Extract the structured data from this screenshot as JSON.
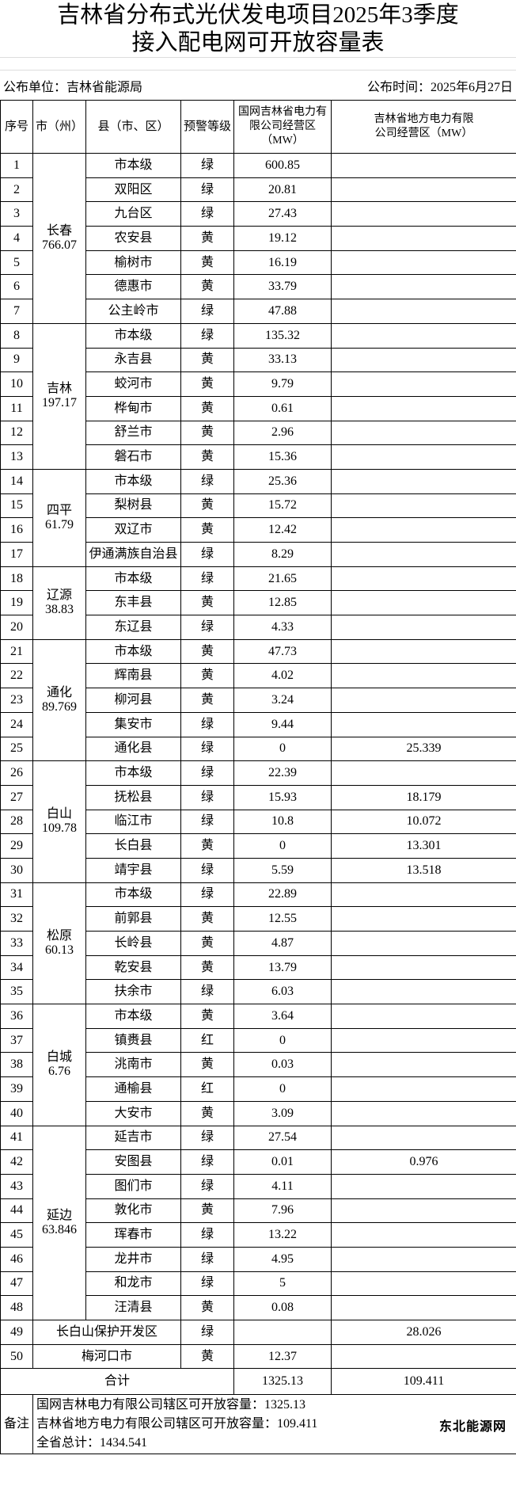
{
  "title_line1": "吉林省分布式光伏发电项目2025年3季度",
  "title_line2": "接入配电网可开放容量表",
  "publisher": "公布单位：吉林省能源局",
  "publish_date": "公布时间：2025年6月27日",
  "headers": [
    "序号",
    "市（州）",
    "县（市、区）",
    "预警等级",
    "国网吉林省电力有限公司经营区（MW）",
    "吉林省地方电力有限公司经营区（MW）"
  ],
  "cities": [
    {
      "name": "长春",
      "total": "766.07",
      "rows": [
        {
          "no": "1",
          "county": "市本级",
          "level": "绿",
          "sg": "600.85",
          "local": ""
        },
        {
          "no": "2",
          "county": "双阳区",
          "level": "绿",
          "sg": "20.81",
          "local": ""
        },
        {
          "no": "3",
          "county": "九台区",
          "level": "绿",
          "sg": "27.43",
          "local": ""
        },
        {
          "no": "4",
          "county": "农安县",
          "level": "黄",
          "sg": "19.12",
          "local": ""
        },
        {
          "no": "5",
          "county": "榆树市",
          "level": "黄",
          "sg": "16.19",
          "local": ""
        },
        {
          "no": "6",
          "county": "德惠市",
          "level": "黄",
          "sg": "33.79",
          "local": ""
        },
        {
          "no": "7",
          "county": "公主岭市",
          "level": "绿",
          "sg": "47.88",
          "local": ""
        }
      ]
    },
    {
      "name": "吉林",
      "total": "197.17",
      "rows": [
        {
          "no": "8",
          "county": "市本级",
          "level": "绿",
          "sg": "135.32",
          "local": ""
        },
        {
          "no": "9",
          "county": "永吉县",
          "level": "黄",
          "sg": "33.13",
          "local": ""
        },
        {
          "no": "10",
          "county": "蛟河市",
          "level": "黄",
          "sg": "9.79",
          "local": ""
        },
        {
          "no": "11",
          "county": "桦甸市",
          "level": "黄",
          "sg": "0.61",
          "local": ""
        },
        {
          "no": "12",
          "county": "舒兰市",
          "level": "黄",
          "sg": "2.96",
          "local": ""
        },
        {
          "no": "13",
          "county": "磐石市",
          "level": "黄",
          "sg": "15.36",
          "local": ""
        }
      ]
    },
    {
      "name": "四平",
      "total": "61.79",
      "rows": [
        {
          "no": "14",
          "county": "市本级",
          "level": "绿",
          "sg": "25.36",
          "local": ""
        },
        {
          "no": "15",
          "county": "梨树县",
          "level": "黄",
          "sg": "15.72",
          "local": ""
        },
        {
          "no": "16",
          "county": "双辽市",
          "level": "黄",
          "sg": "12.42",
          "local": ""
        },
        {
          "no": "17",
          "county": "伊通满族自治县",
          "level": "绿",
          "sg": "8.29",
          "local": ""
        }
      ]
    },
    {
      "name": "辽源",
      "total": "38.83",
      "rows": [
        {
          "no": "18",
          "county": "市本级",
          "level": "绿",
          "sg": "21.65",
          "local": ""
        },
        {
          "no": "19",
          "county": "东丰县",
          "level": "黄",
          "sg": "12.85",
          "local": ""
        },
        {
          "no": "20",
          "county": "东辽县",
          "level": "绿",
          "sg": "4.33",
          "local": ""
        }
      ]
    },
    {
      "name": "通化",
      "total": "89.769",
      "rows": [
        {
          "no": "21",
          "county": "市本级",
          "level": "黄",
          "sg": "47.73",
          "local": ""
        },
        {
          "no": "22",
          "county": "辉南县",
          "level": "黄",
          "sg": "4.02",
          "local": ""
        },
        {
          "no": "23",
          "county": "柳河县",
          "level": "黄",
          "sg": "3.24",
          "local": ""
        },
        {
          "no": "24",
          "county": "集安市",
          "level": "绿",
          "sg": "9.44",
          "local": ""
        },
        {
          "no": "25",
          "county": "通化县",
          "level": "绿",
          "sg": "0",
          "local": "25.339"
        }
      ]
    },
    {
      "name": "白山",
      "total": "109.78",
      "rows": [
        {
          "no": "26",
          "county": "市本级",
          "level": "绿",
          "sg": "22.39",
          "local": ""
        },
        {
          "no": "27",
          "county": "抚松县",
          "level": "绿",
          "sg": "15.93",
          "local": "18.179"
        },
        {
          "no": "28",
          "county": "临江市",
          "level": "绿",
          "sg": "10.8",
          "local": "10.072"
        },
        {
          "no": "29",
          "county": "长白县",
          "level": "黄",
          "sg": "0",
          "local": "13.301"
        },
        {
          "no": "30",
          "county": "靖宇县",
          "level": "绿",
          "sg": "5.59",
          "local": "13.518"
        }
      ]
    },
    {
      "name": "松原",
      "total": "60.13",
      "rows": [
        {
          "no": "31",
          "county": "市本级",
          "level": "绿",
          "sg": "22.89",
          "local": ""
        },
        {
          "no": "32",
          "county": "前郭县",
          "level": "黄",
          "sg": "12.55",
          "local": ""
        },
        {
          "no": "33",
          "county": "长岭县",
          "level": "黄",
          "sg": "4.87",
          "local": ""
        },
        {
          "no": "34",
          "county": "乾安县",
          "level": "黄",
          "sg": "13.79",
          "local": ""
        },
        {
          "no": "35",
          "county": "扶余市",
          "level": "绿",
          "sg": "6.03",
          "local": ""
        }
      ]
    },
    {
      "name": "白城",
      "total": "6.76",
      "rows": [
        {
          "no": "36",
          "county": "市本级",
          "level": "黄",
          "sg": "3.64",
          "local": ""
        },
        {
          "no": "37",
          "county": "镇赉县",
          "level": "红",
          "sg": "0",
          "local": ""
        },
        {
          "no": "38",
          "county": "洮南市",
          "level": "黄",
          "sg": "0.03",
          "local": ""
        },
        {
          "no": "39",
          "county": "通榆县",
          "level": "红",
          "sg": "0",
          "local": ""
        },
        {
          "no": "40",
          "county": "大安市",
          "level": "黄",
          "sg": "3.09",
          "local": ""
        }
      ]
    },
    {
      "name": "延边",
      "total": "63.846",
      "rows": [
        {
          "no": "41",
          "county": "延吉市",
          "level": "绿",
          "sg": "27.54",
          "local": ""
        },
        {
          "no": "42",
          "county": "安图县",
          "level": "绿",
          "sg": "0.01",
          "local": "0.976"
        },
        {
          "no": "43",
          "county": "图们市",
          "level": "绿",
          "sg": "4.11",
          "local": ""
        },
        {
          "no": "44",
          "county": "敦化市",
          "level": "黄",
          "sg": "7.96",
          "local": ""
        },
        {
          "no": "45",
          "county": "珲春市",
          "level": "绿",
          "sg": "13.22",
          "local": ""
        },
        {
          "no": "46",
          "county": "龙井市",
          "level": "绿",
          "sg": "4.95",
          "local": ""
        },
        {
          "no": "47",
          "county": "和龙市",
          "level": "绿",
          "sg": "5",
          "local": ""
        },
        {
          "no": "48",
          "county": "汪清县",
          "level": "黄",
          "sg": "0.08",
          "local": ""
        }
      ]
    }
  ],
  "special_rows": [
    {
      "no": "49",
      "county": "长白山保护开发区",
      "level": "绿",
      "sg": "",
      "local": "28.026"
    },
    {
      "no": "50",
      "county": "梅河口市",
      "level": "黄",
      "sg": "12.37",
      "local": ""
    }
  ],
  "total": {
    "label": "合计",
    "sg": "1325.13",
    "local": "109.411"
  },
  "remarks": {
    "label": "备注",
    "lines": [
      "国网吉林电力有限公司辖区可开放容量：1325.13",
      "吉林省地方电力有限公司辖区可开放容量：109.411",
      "全省总计：1434.541"
    ]
  },
  "watermark": "东北能源网"
}
